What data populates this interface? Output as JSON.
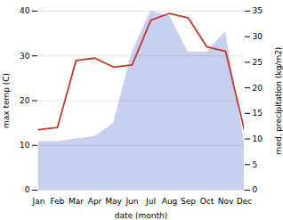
{
  "chart_data": {
    "type": "line",
    "categories": [
      "Jan",
      "Feb",
      "Mar",
      "Apr",
      "May",
      "Jun",
      "Jul",
      "Aug",
      "Sep",
      "Oct",
      "Nov",
      "Dec"
    ],
    "series": [
      {
        "type": "area",
        "axis": "y2",
        "color": "#c8d0f0",
        "values": [
          9.5,
          9.5,
          10.0,
          10.5,
          13.0,
          27.0,
          35.0,
          34.0,
          27.0,
          27.0,
          31.0,
          9.5
        ]
      },
      {
        "type": "line",
        "color": "#c0392b",
        "values": [
          13.5,
          14.0,
          29.0,
          29.5,
          27.5,
          28.0,
          38.0,
          39.5,
          38.5,
          32.0,
          31.0,
          13.5
        ]
      }
    ],
    "xlabel": "date (month)",
    "ylabel": "max temp (C)",
    "y2label": "med. precipitation (kg/m2)",
    "ylim": [
      0,
      40
    ],
    "yticks": [
      0,
      10,
      20,
      30,
      40
    ],
    "y2lim": [
      0,
      35
    ],
    "y2ticks": [
      0,
      5,
      10,
      15,
      20,
      25,
      30,
      35
    ],
    "grid": true
  }
}
